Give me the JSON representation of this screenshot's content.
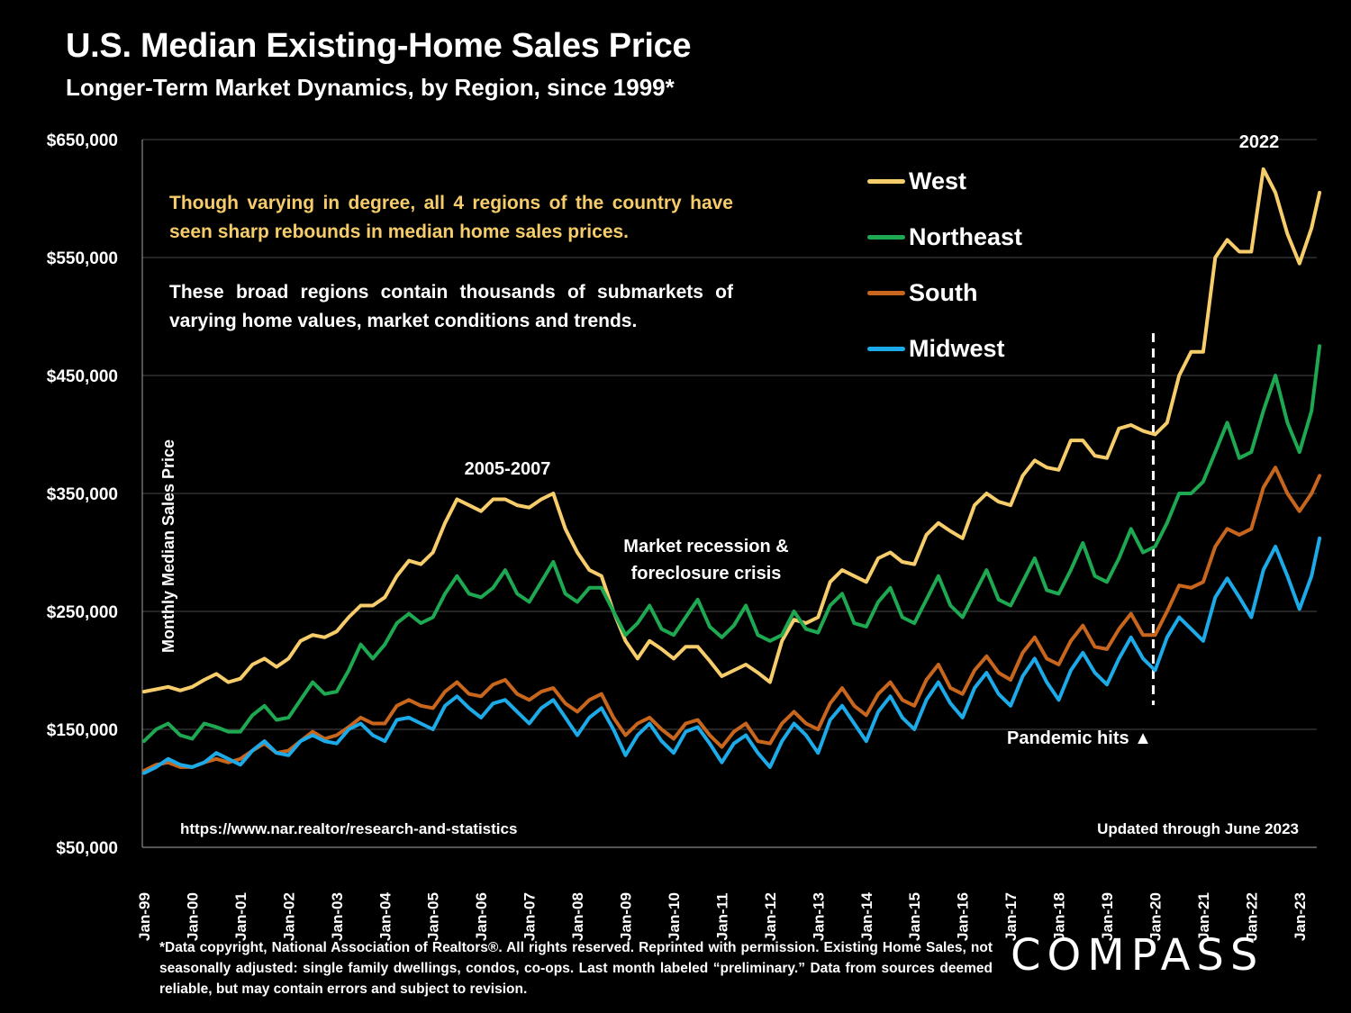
{
  "header": {
    "title": "U.S. Median Existing-Home Sales Price",
    "subtitle": "Longer-Term Market Dynamics, by Region, since 1999*"
  },
  "notes": {
    "highlight": "Though varying in degree, all 4 regions of the country have seen sharp rebounds in median home sales prices.",
    "body": "These broad regions contain thousands of submarkets of varying home values, market conditions and trends."
  },
  "annotations": {
    "peak_2005": "2005-2007",
    "recession_line1": "Market recession &",
    "recession_line2": "foreclosure crisis",
    "peak_2022": "2022",
    "pandemic": "Pandemic hits",
    "pandemic_marker": "▲"
  },
  "source_url": "https://www.nar.realtor/research-and-statistics",
  "updated": "Updated through June 2023",
  "footer": "*Data copyright, National Association of Realtors®. All rights reserved. Reprinted with permission. Existing Home Sales, not seasonally adjusted:  single family dwellings, condos, co-ops. Last month labeled “preliminary.” Data from sources deemed reliable, but may contain errors and subject to revision.",
  "logo": "COMPASS",
  "chart_data": {
    "type": "line",
    "title": "U.S. Median Existing-Home Sales Price",
    "subtitle": "Longer-Term Market Dynamics, by Region, since 1999*",
    "xlabel": "",
    "ylabel": "Monthly Median Sales Price",
    "ylim": [
      50000,
      650000
    ],
    "yticks": [
      50000,
      150000,
      250000,
      350000,
      450000,
      550000,
      650000
    ],
    "ytick_labels": [
      "$50,000",
      "$150,000",
      "$250,000",
      "$350,000",
      "$450,000",
      "$550,000",
      "$650,000"
    ],
    "xticks": [
      "Jan-99",
      "Jan-00",
      "Jan-01",
      "Jan-02",
      "Jan-03",
      "Jan-04",
      "Jan-05",
      "Jan-06",
      "Jan-07",
      "Jan-08",
      "Jan-09",
      "Jan-10",
      "Jan-11",
      "Jan-12",
      "Jan-13",
      "Jan-14",
      "Jan-15",
      "Jan-16",
      "Jan-17",
      "Jan-18",
      "Jan-19",
      "Jan-20",
      "Jan-21",
      "Jan-22",
      "Jan-23"
    ],
    "x_range": [
      "1999-01",
      "2023-06"
    ],
    "x_sampling": "quarterly (Jan, Apr, Jul, Oct); 2023: Jan, Apr, Jun",
    "grid": true,
    "legend_position": "top-right",
    "pandemic_marker_x": "2020-01",
    "series": [
      {
        "name": "West",
        "color": "#F7CD6B",
        "values": [
          182000,
          184000,
          186000,
          183000,
          186000,
          192000,
          197000,
          190000,
          193000,
          205000,
          210000,
          203000,
          210000,
          225000,
          230000,
          228000,
          233000,
          245000,
          255000,
          255000,
          262000,
          280000,
          293000,
          290000,
          300000,
          325000,
          345000,
          340000,
          335000,
          345000,
          345000,
          340000,
          338000,
          345000,
          350000,
          320000,
          300000,
          285000,
          280000,
          250000,
          225000,
          210000,
          225000,
          218000,
          210000,
          220000,
          220000,
          208000,
          195000,
          200000,
          205000,
          198000,
          190000,
          225000,
          243000,
          240000,
          245000,
          275000,
          285000,
          280000,
          275000,
          295000,
          300000,
          292000,
          290000,
          315000,
          325000,
          318000,
          312000,
          340000,
          350000,
          343000,
          340000,
          365000,
          378000,
          372000,
          370000,
          395000,
          395000,
          382000,
          380000,
          405000,
          408000,
          403000,
          400000,
          410000,
          450000,
          470000,
          470000,
          550000,
          565000,
          555000,
          555000,
          625000,
          605000,
          570000,
          545000,
          575000,
          605000
        ]
      },
      {
        "name": "Northeast",
        "color": "#1DA851",
        "values": [
          140000,
          150000,
          155000,
          145000,
          142000,
          155000,
          152000,
          148000,
          148000,
          162000,
          170000,
          158000,
          160000,
          175000,
          190000,
          180000,
          182000,
          200000,
          222000,
          210000,
          222000,
          240000,
          248000,
          240000,
          245000,
          265000,
          280000,
          265000,
          262000,
          270000,
          285000,
          265000,
          258000,
          275000,
          292000,
          265000,
          258000,
          270000,
          270000,
          250000,
          230000,
          240000,
          255000,
          235000,
          230000,
          245000,
          260000,
          237000,
          228000,
          238000,
          255000,
          230000,
          225000,
          230000,
          250000,
          235000,
          232000,
          255000,
          265000,
          240000,
          237000,
          258000,
          270000,
          245000,
          240000,
          260000,
          280000,
          255000,
          245000,
          265000,
          285000,
          260000,
          255000,
          275000,
          295000,
          268000,
          265000,
          285000,
          308000,
          280000,
          275000,
          295000,
          320000,
          300000,
          305000,
          325000,
          350000,
          350000,
          360000,
          385000,
          410000,
          380000,
          385000,
          420000,
          450000,
          410000,
          385000,
          420000,
          475000
        ]
      },
      {
        "name": "South",
        "color": "#C8661E",
        "values": [
          115000,
          120000,
          122000,
          118000,
          118000,
          122000,
          125000,
          122000,
          125000,
          132000,
          138000,
          130000,
          132000,
          140000,
          148000,
          142000,
          145000,
          152000,
          160000,
          155000,
          155000,
          170000,
          175000,
          170000,
          168000,
          182000,
          190000,
          180000,
          178000,
          188000,
          192000,
          180000,
          175000,
          182000,
          185000,
          172000,
          165000,
          175000,
          180000,
          160000,
          145000,
          155000,
          160000,
          150000,
          142000,
          155000,
          158000,
          145000,
          135000,
          148000,
          155000,
          140000,
          138000,
          155000,
          165000,
          155000,
          150000,
          172000,
          185000,
          170000,
          162000,
          180000,
          190000,
          175000,
          170000,
          192000,
          205000,
          185000,
          180000,
          200000,
          212000,
          198000,
          192000,
          215000,
          228000,
          210000,
          205000,
          225000,
          238000,
          220000,
          218000,
          235000,
          248000,
          230000,
          230000,
          250000,
          272000,
          270000,
          275000,
          305000,
          320000,
          315000,
          320000,
          355000,
          372000,
          350000,
          335000,
          350000,
          365000
        ]
      },
      {
        "name": "Midwest",
        "color": "#1CAAE8",
        "values": [
          113000,
          118000,
          125000,
          120000,
          118000,
          122000,
          130000,
          125000,
          120000,
          132000,
          140000,
          130000,
          128000,
          140000,
          145000,
          140000,
          138000,
          150000,
          155000,
          145000,
          140000,
          158000,
          160000,
          155000,
          150000,
          170000,
          178000,
          168000,
          160000,
          172000,
          175000,
          165000,
          155000,
          168000,
          175000,
          160000,
          145000,
          160000,
          168000,
          150000,
          128000,
          145000,
          155000,
          140000,
          130000,
          148000,
          152000,
          138000,
          122000,
          138000,
          145000,
          130000,
          118000,
          140000,
          155000,
          145000,
          130000,
          158000,
          170000,
          155000,
          140000,
          165000,
          178000,
          160000,
          150000,
          175000,
          190000,
          172000,
          160000,
          185000,
          198000,
          180000,
          170000,
          195000,
          210000,
          190000,
          175000,
          200000,
          215000,
          198000,
          188000,
          210000,
          228000,
          210000,
          200000,
          228000,
          245000,
          235000,
          225000,
          262000,
          278000,
          262000,
          245000,
          285000,
          305000,
          280000,
          252000,
          280000,
          312000
        ]
      }
    ]
  }
}
